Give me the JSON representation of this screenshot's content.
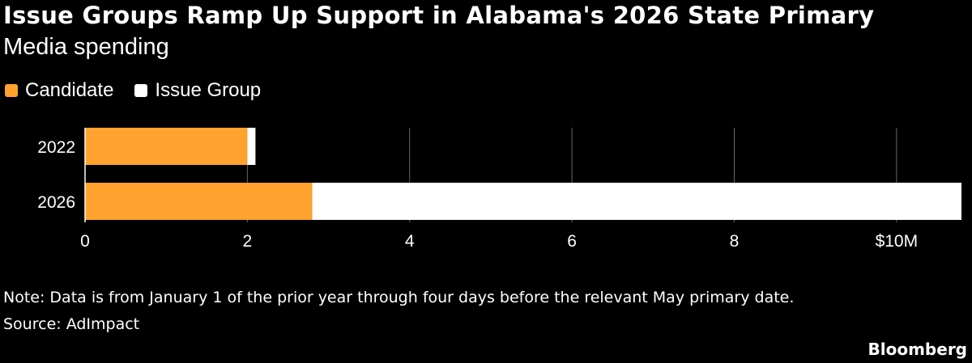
{
  "title": "Issue Groups Ramp Up Support in Alabama's 2026 State Primary",
  "subtitle": "Media spending",
  "legend": [
    {
      "label": "Candidate",
      "color": "#ffa22e"
    },
    {
      "label": "Issue Group",
      "color": "#ffffff"
    }
  ],
  "chart_data": {
    "type": "bar",
    "orientation": "horizontal",
    "stacked": true,
    "categories": [
      "2022",
      "2026"
    ],
    "series": [
      {
        "name": "Candidate",
        "color": "#ffa22e",
        "values": [
          2.0,
          2.8
        ]
      },
      {
        "name": "Issue Group",
        "color": "#ffffff",
        "values": [
          0.1,
          8.0
        ]
      }
    ],
    "xlim": [
      0,
      10.8
    ],
    "x_ticks": [
      0,
      2,
      4,
      6,
      8,
      10
    ],
    "x_tick_labels": [
      "0",
      "2",
      "4",
      "6",
      "8",
      "$10M"
    ],
    "grid": "vertical",
    "legend_position": "top-left"
  },
  "note": "Note: Data is from January 1 of the prior year through four days before the relevant May primary date.",
  "source": "Source: AdImpact",
  "brand": "Bloomberg"
}
